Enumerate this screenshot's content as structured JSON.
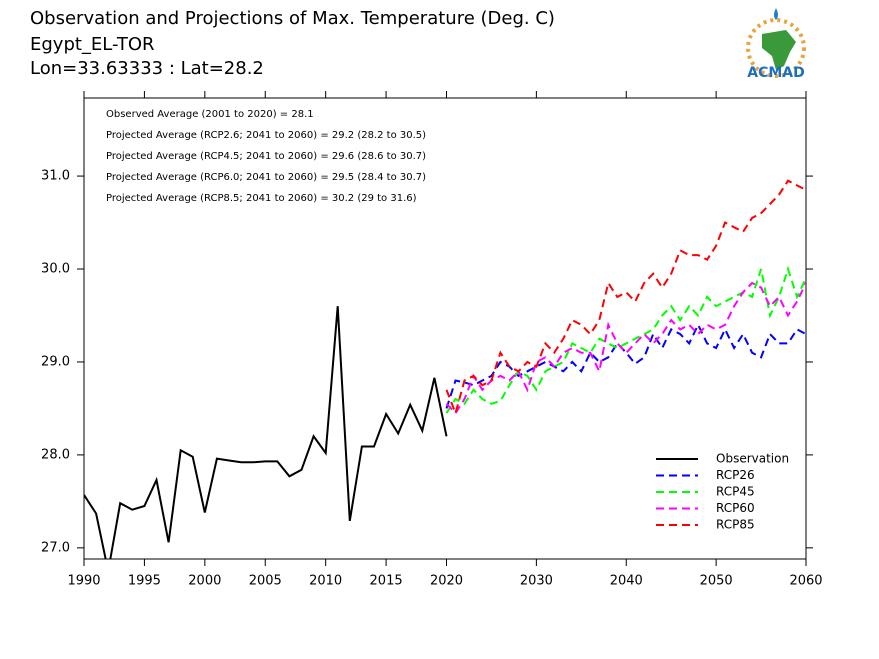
{
  "chart_data": {
    "type": "line",
    "title": "Observation and Projections of Max. Temperature (Deg. C)",
    "subtitle": [
      "Egypt_EL-TOR",
      "Lon=33.63333 : Lat=28.2"
    ],
    "logo": "ACMAD",
    "annotations": [
      "Observed Average (2001 to 2020) = 28.1",
      "Projected Average (RCP2.6; 2041 to 2060) = 29.2 (28.2 to 30.5)",
      "Projected Average (RCP4.5; 2041 to 2060) = 29.6 (28.6 to 30.7)",
      "Projected Average (RCP6.0; 2041 to 2060) = 29.5 (28.4 to 30.7)",
      "Projected Average (RCP8.5; 2041 to 2060) = 30.2 (29 to 31.6)"
    ],
    "x": [
      1990,
      1991,
      1992,
      1993,
      1994,
      1995,
      1996,
      1997,
      1998,
      1999,
      2000,
      2001,
      2002,
      2003,
      2004,
      2005,
      2006,
      2007,
      2008,
      2009,
      2010,
      2011,
      2012,
      2013,
      2014,
      2015,
      2016,
      2017,
      2018,
      2019,
      2020,
      2021,
      2022,
      2023,
      2024,
      2025,
      2026,
      2027,
      2028,
      2029,
      2030,
      2031,
      2032,
      2033,
      2034,
      2035,
      2036,
      2037,
      2038,
      2039,
      2040,
      2041,
      2042,
      2043,
      2044,
      2045,
      2046,
      2047,
      2048,
      2049,
      2050,
      2051,
      2052,
      2053,
      2054,
      2055,
      2056,
      2057,
      2058,
      2059,
      2060
    ],
    "series": [
      {
        "name": "Observation",
        "color": "#000000",
        "linestyle": "solid",
        "values": [
          27.57,
          27.37,
          26.75,
          27.48,
          27.41,
          27.45,
          27.73,
          27.06,
          28.05,
          27.98,
          27.38,
          27.96,
          27.94,
          27.92,
          27.92,
          27.93,
          27.93,
          27.77,
          27.84,
          28.2,
          28.02,
          29.6,
          27.29,
          28.09,
          28.09,
          28.44,
          28.23,
          28.54,
          28.26,
          28.83,
          28.2,
          null,
          null,
          null,
          null,
          null,
          null,
          null,
          null,
          null,
          null,
          null,
          null,
          null,
          null,
          null,
          null,
          null,
          null,
          null,
          null,
          null,
          null,
          null,
          null,
          null,
          null,
          null,
          null,
          null,
          null,
          null,
          null,
          null,
          null,
          null,
          null,
          null,
          null,
          null,
          null
        ]
      },
      {
        "name": "RCP26",
        "color": "#0000ff",
        "linestyle": "dashed",
        "values": [
          null,
          null,
          null,
          null,
          null,
          null,
          null,
          null,
          null,
          null,
          null,
          null,
          null,
          null,
          null,
          null,
          null,
          null,
          null,
          null,
          null,
          null,
          null,
          null,
          null,
          null,
          null,
          null,
          null,
          null,
          28.5,
          28.8,
          28.78,
          28.75,
          28.8,
          28.85,
          29.0,
          28.95,
          28.85,
          28.9,
          28.95,
          29.0,
          28.95,
          28.9,
          29.0,
          28.9,
          29.1,
          29.0,
          29.05,
          29.2,
          29.1,
          28.98,
          29.05,
          29.3,
          29.15,
          29.35,
          29.3,
          29.2,
          29.4,
          29.2,
          29.15,
          29.35,
          29.15,
          29.3,
          29.1,
          29.05,
          29.3,
          29.2,
          29.2,
          29.35,
          29.3
        ]
      },
      {
        "name": "RCP45",
        "color": "#00ff00",
        "linestyle": "dashed",
        "values": [
          null,
          null,
          null,
          null,
          null,
          null,
          null,
          null,
          null,
          null,
          null,
          null,
          null,
          null,
          null,
          null,
          null,
          null,
          null,
          null,
          null,
          null,
          null,
          null,
          null,
          null,
          null,
          null,
          null,
          null,
          28.45,
          28.6,
          28.55,
          28.7,
          28.6,
          28.55,
          28.58,
          28.75,
          28.9,
          28.85,
          28.7,
          28.9,
          28.95,
          29.0,
          29.2,
          29.15,
          29.1,
          29.25,
          29.2,
          29.15,
          29.2,
          29.25,
          29.3,
          29.35,
          29.5,
          29.6,
          29.45,
          29.6,
          29.5,
          29.7,
          29.6,
          29.65,
          29.7,
          29.75,
          29.7,
          30.0,
          29.5,
          29.7,
          30.0,
          29.7,
          29.9
        ]
      },
      {
        "name": "RCP60",
        "color": "#ff00ff",
        "linestyle": "dashed",
        "values": [
          null,
          null,
          null,
          null,
          null,
          null,
          null,
          null,
          null,
          null,
          null,
          null,
          null,
          null,
          null,
          null,
          null,
          null,
          null,
          null,
          null,
          null,
          null,
          null,
          null,
          null,
          null,
          null,
          null,
          null,
          28.55,
          28.45,
          28.6,
          28.85,
          28.7,
          28.8,
          28.85,
          28.8,
          28.9,
          28.7,
          29.0,
          29.05,
          28.95,
          29.1,
          29.15,
          29.1,
          29.1,
          28.9,
          29.4,
          29.2,
          29.1,
          29.2,
          29.3,
          29.2,
          29.3,
          29.45,
          29.35,
          29.4,
          29.3,
          29.4,
          29.35,
          29.4,
          29.6,
          29.75,
          29.85,
          29.8,
          29.6,
          29.7,
          29.5,
          29.65,
          29.85
        ]
      },
      {
        "name": "RCP85",
        "color": "#ff0000",
        "linestyle": "dashed",
        "values": [
          null,
          null,
          null,
          null,
          null,
          null,
          null,
          null,
          null,
          null,
          null,
          null,
          null,
          null,
          null,
          null,
          null,
          null,
          null,
          null,
          null,
          null,
          null,
          null,
          null,
          null,
          null,
          null,
          null,
          null,
          28.7,
          28.45,
          28.8,
          28.85,
          28.75,
          28.8,
          29.1,
          28.95,
          28.9,
          29.0,
          28.95,
          29.2,
          29.1,
          29.25,
          29.45,
          29.4,
          29.3,
          29.45,
          29.85,
          29.7,
          29.75,
          29.65,
          29.85,
          29.95,
          29.8,
          29.95,
          30.2,
          30.15,
          30.15,
          30.1,
          30.25,
          30.5,
          30.45,
          30.4,
          30.55,
          30.6,
          30.7,
          30.8,
          30.95,
          30.9,
          30.85
        ]
      }
    ],
    "xlim": [
      1990,
      2060
    ],
    "xticks": [
      1990,
      1995,
      2000,
      2005,
      2010,
      2015,
      2020,
      2030,
      2040,
      2050,
      2060
    ],
    "ylim": [
      26.88,
      31.84
    ],
    "yticks": [
      {
        "value": 27,
        "label": "27.0"
      },
      {
        "value": 28,
        "label": "28.0"
      },
      {
        "value": 29,
        "label": "29.0"
      },
      {
        "value": 30,
        "label": "30.0"
      },
      {
        "value": 31,
        "label": "31.0"
      }
    ],
    "grid": false,
    "legend": "lower right"
  }
}
